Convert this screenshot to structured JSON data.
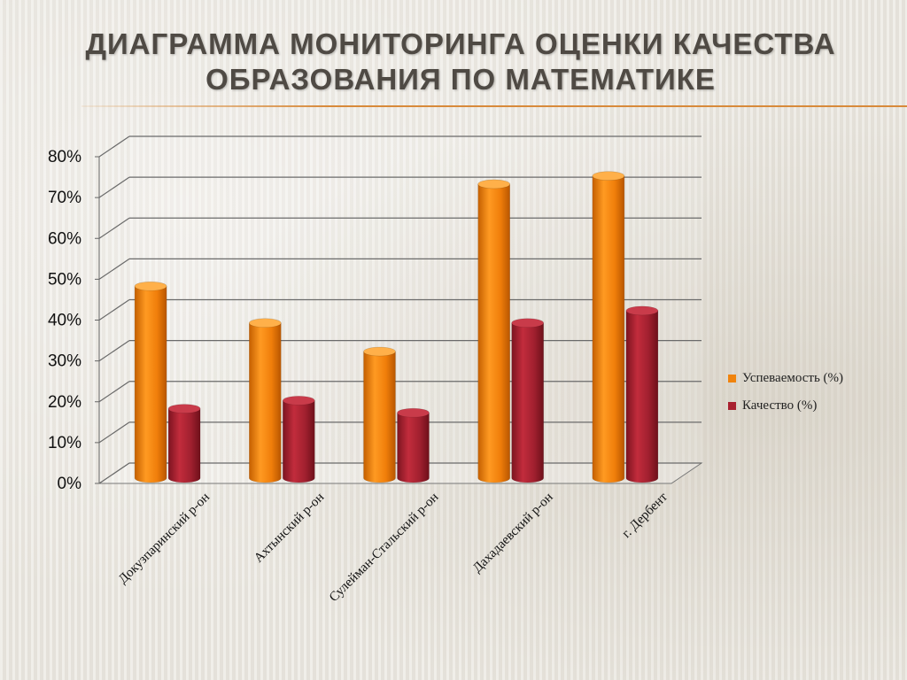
{
  "slide": {
    "title": "Диаграмма мониторинга оценки качества образования по математике"
  },
  "chart_data": {
    "type": "bar",
    "categories": [
      "Докузпаринский р-он",
      "Ахтынский р-он",
      "Сулейман-Стальский р-он",
      "Дахадаевский р-он",
      "г. Дербент"
    ],
    "series": [
      {
        "name": "Успеваемость (%)",
        "color": "#f0830d",
        "values": [
          47,
          38,
          31,
          72,
          74
        ]
      },
      {
        "name": "Качество (%)",
        "color": "#a8202f",
        "values": [
          17,
          19,
          16,
          38,
          41
        ]
      }
    ],
    "yticks": [
      "0%",
      "10%",
      "20%",
      "30%",
      "40%",
      "50%",
      "60%",
      "70%",
      "80%"
    ],
    "ylim": [
      0,
      80
    ],
    "grid": true,
    "legend_position": "right"
  }
}
